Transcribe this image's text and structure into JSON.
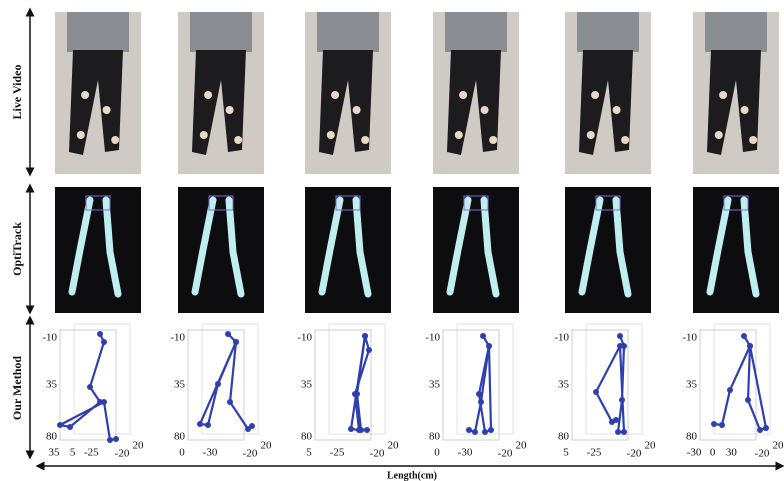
{
  "rows": [
    {
      "label": "Live Video"
    },
    {
      "label": "OptiTrack"
    },
    {
      "label": "Our Method"
    }
  ],
  "plots": [
    {
      "yticks": [
        "-10",
        "35",
        "80"
      ],
      "xticks": [
        "35",
        "5",
        "-25",
        "-20",
        "20"
      ]
    },
    {
      "yticks": [
        "-10",
        "35",
        "80"
      ],
      "xticks": [
        "0",
        "-30",
        "-20",
        "20"
      ]
    },
    {
      "yticks": [
        "-10",
        "35",
        "80"
      ],
      "xticks": [
        "5",
        "-25",
        "-20",
        "20"
      ]
    },
    {
      "yticks": [
        "-10",
        "35",
        "80"
      ],
      "xticks": [
        "0",
        "-30",
        "-20",
        "20"
      ]
    },
    {
      "yticks": [
        "-10",
        "35",
        "80"
      ],
      "xticks": [
        "5",
        "-25",
        "-20",
        "20"
      ]
    },
    {
      "yticks": [
        "-10",
        "35",
        "80"
      ],
      "xticks": [
        "-30",
        "0",
        "30",
        "-20",
        "20"
      ]
    }
  ],
  "x_axis_label": "Length(cm)"
}
